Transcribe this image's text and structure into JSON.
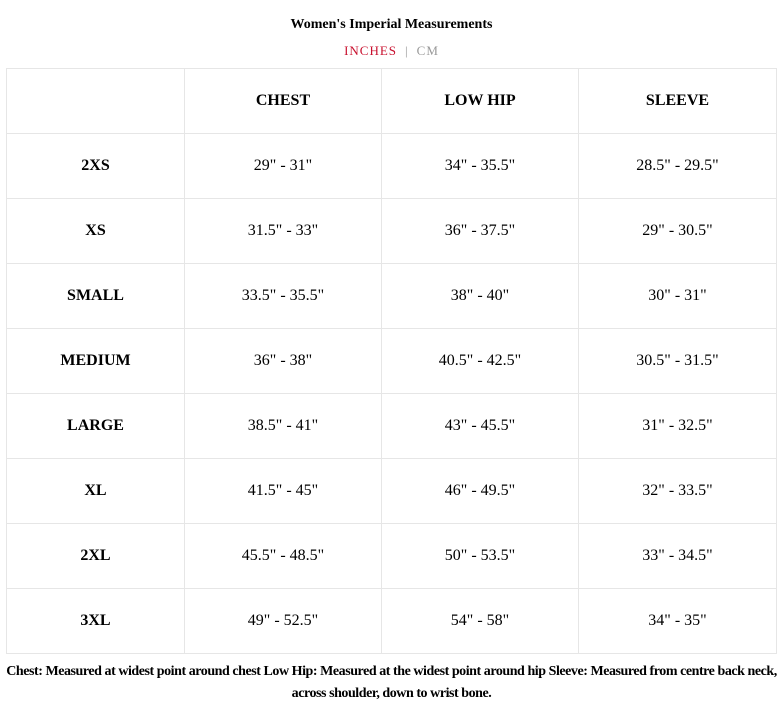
{
  "title": "Women's Imperial Measurements",
  "units": {
    "active": "INCHES",
    "separator": "|",
    "inactive": "CM",
    "active_color": "#c8102e"
  },
  "table": {
    "headers": [
      "",
      "CHEST",
      "LOW HIP",
      "SLEEVE"
    ],
    "rows": [
      [
        "2XS",
        "29\" - 31\"",
        "34\" - 35.5\"",
        "28.5\" - 29.5\""
      ],
      [
        "XS",
        "31.5\" - 33\"",
        "36\" - 37.5\"",
        "29\" - 30.5\""
      ],
      [
        "SMALL",
        "33.5\" - 35.5\"",
        "38\" - 40\"",
        "30\" - 31\""
      ],
      [
        "MEDIUM",
        "36\" - 38\"",
        "40.5\" - 42.5\"",
        "30.5\" - 31.5\""
      ],
      [
        "LARGE",
        "38.5\" - 41\"",
        "43\" - 45.5\"",
        "31\" - 32.5\""
      ],
      [
        "XL",
        "41.5\" - 45\"",
        "46\" - 49.5\"",
        "32\" - 33.5\""
      ],
      [
        "2XL",
        "45.5\" - 48.5\"",
        "50\" - 53.5\"",
        "33\" - 34.5\""
      ],
      [
        "3XL",
        "49\" - 52.5\"",
        "54\" - 58\"",
        "34\" - 35\""
      ]
    ]
  },
  "note": "Chest: Measured at widest point around chest Low Hip: Measured at the widest point around hip Sleeve: Measured from centre back neck, across shoulder, down to wrist bone."
}
